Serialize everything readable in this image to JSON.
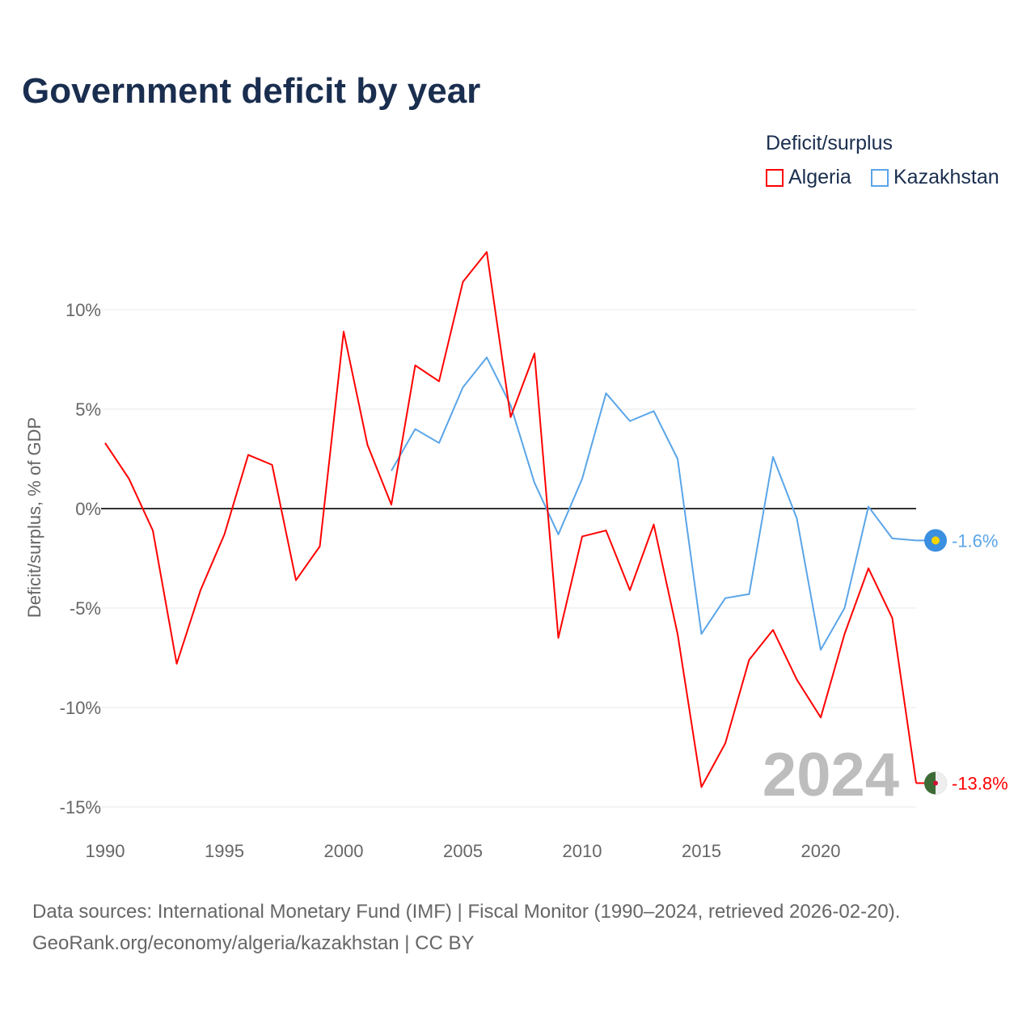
{
  "title": "Government deficit by year",
  "legend": {
    "title": "Deficit/surplus",
    "items": [
      {
        "name": "Algeria",
        "color": "#ff0000"
      },
      {
        "name": "Kazakhstan",
        "color": "#5aa5e8"
      }
    ]
  },
  "source": {
    "line1": "Data sources: International Monetary Fund (IMF) | Fiscal Monitor (1990–2024, retrieved 2026-02-20).",
    "line2": "GeoRank.org/economy/algeria/kazakhstan | CC BY"
  },
  "chart_data": {
    "type": "line",
    "title": "Government deficit by year",
    "xlabel": "",
    "ylabel": "Deficit/surplus, % of GDP",
    "xlim": [
      1990,
      2024
    ],
    "ylim": [
      -15.5,
      13.5
    ],
    "xticks": [
      1990,
      1995,
      2000,
      2005,
      2010,
      2015,
      2020
    ],
    "xtick_labels": [
      "1990",
      "1995",
      "2000",
      "2005",
      "2010",
      "2015",
      "2020"
    ],
    "yticks": [
      10,
      5,
      0,
      -5,
      -10,
      -15
    ],
    "ytick_labels": [
      "10%",
      "5%",
      "0%",
      "-5%",
      "-10%",
      "-15%"
    ],
    "year_watermark": "2024",
    "series": [
      {
        "name": "Algeria",
        "color": "#ff0000",
        "end_label": "-13.8%",
        "x": [
          1990,
          1991,
          1992,
          1993,
          1994,
          1995,
          1996,
          1997,
          1998,
          1999,
          2000,
          2001,
          2002,
          2003,
          2004,
          2005,
          2006,
          2007,
          2008,
          2009,
          2010,
          2011,
          2012,
          2013,
          2014,
          2015,
          2016,
          2017,
          2018,
          2019,
          2020,
          2021,
          2022,
          2023,
          2024
        ],
        "values": [
          3.3,
          1.5,
          -1.1,
          -7.8,
          -4.1,
          -1.3,
          2.7,
          2.2,
          -3.6,
          -1.9,
          8.9,
          3.2,
          0.2,
          7.2,
          6.4,
          11.4,
          12.9,
          4.6,
          7.8,
          -6.5,
          -1.4,
          -1.1,
          -4.1,
          -0.8,
          -6.3,
          -14.0,
          -11.8,
          -7.6,
          -6.1,
          -8.6,
          -10.5,
          -6.3,
          -3.0,
          -5.5,
          -13.8
        ]
      },
      {
        "name": "Kazakhstan",
        "color": "#5aa5e8",
        "end_label": "-1.6%",
        "x": [
          2002,
          2003,
          2004,
          2005,
          2006,
          2007,
          2008,
          2009,
          2010,
          2011,
          2012,
          2013,
          2014,
          2015,
          2016,
          2017,
          2018,
          2019,
          2020,
          2021,
          2022,
          2023,
          2024
        ],
        "values": [
          1.9,
          4.0,
          3.3,
          6.1,
          7.6,
          5.2,
          1.3,
          -1.3,
          1.5,
          5.8,
          4.4,
          4.9,
          2.5,
          -6.3,
          -4.5,
          -4.3,
          2.6,
          -0.5,
          -7.1,
          -5.0,
          0.1,
          -1.5,
          -1.6
        ]
      }
    ]
  }
}
